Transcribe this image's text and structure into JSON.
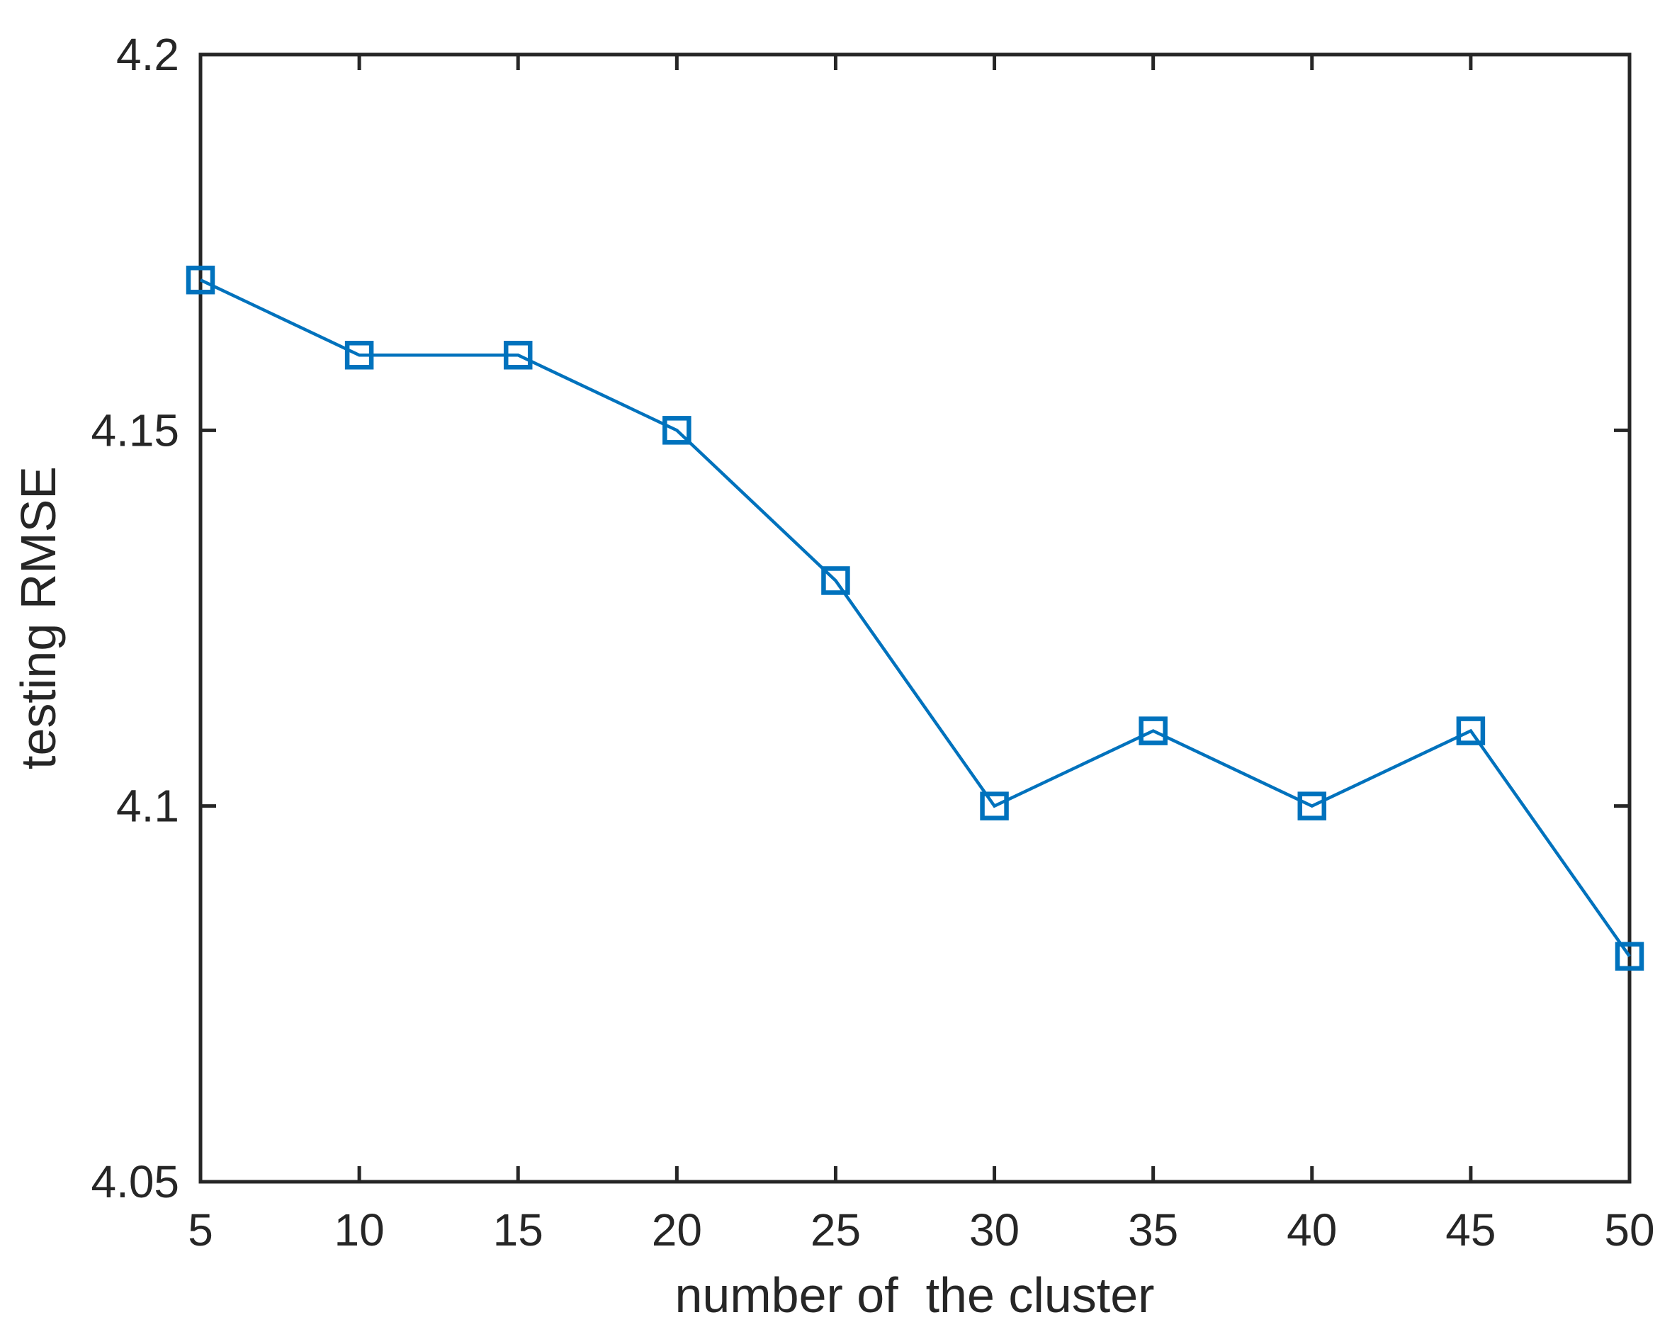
{
  "chart_data": {
    "type": "line",
    "xlabel": "number of  the cluster",
    "ylabel": "testing RMSE",
    "x": [
      5,
      10,
      15,
      20,
      25,
      30,
      35,
      40,
      45,
      50
    ],
    "series": [
      {
        "name": "testing RMSE",
        "values": [
          4.17,
          4.16,
          4.16,
          4.15,
          4.13,
          4.1,
          4.11,
          4.1,
          4.11,
          4.08
        ],
        "color": "#0072BD",
        "marker": "open-square",
        "line_style": "solid"
      }
    ],
    "xlim": [
      5,
      50
    ],
    "ylim": [
      4.05,
      4.2
    ],
    "xticks": [
      5,
      10,
      15,
      20,
      25,
      30,
      35,
      40,
      45,
      50
    ],
    "xtick_labels": [
      "5",
      "10",
      "15",
      "20",
      "25",
      "30",
      "35",
      "40",
      "45",
      "50"
    ],
    "yticks": [
      4.05,
      4.1,
      4.15,
      4.2
    ],
    "ytick_labels": [
      "4.05",
      "4.1",
      "4.15",
      "4.2"
    ],
    "grid": false,
    "box": true,
    "tick_direction": "in",
    "axis_color": "#262626",
    "background": "#ffffff"
  }
}
